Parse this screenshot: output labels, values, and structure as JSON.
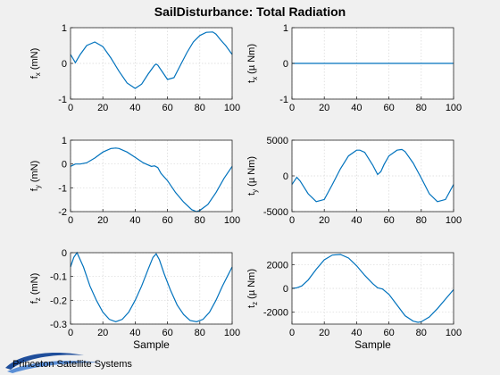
{
  "figure": {
    "title": "SailDisturbance: Total Radiation",
    "logo_text": "Princeton Satellite Systems"
  },
  "colors": {
    "line": "#0072bd",
    "background": "#f0f0f0",
    "axes": "#ffffff",
    "grid": "#d6d6d6"
  },
  "chart_data": [
    {
      "type": "line",
      "xlabel": "",
      "ylabel": "f_x (mN)",
      "xlim": [
        0,
        100
      ],
      "ylim": [
        -1,
        1
      ],
      "xticks": [
        "0",
        "20",
        "40",
        "60",
        "80",
        "100"
      ],
      "xtick_values": [
        0,
        20,
        40,
        60,
        80,
        100
      ],
      "yticks": [
        "-1",
        "0",
        "1"
      ],
      "ytick_values": [
        -1,
        0,
        1
      ],
      "grid": true,
      "series": [
        {
          "x": [
            0,
            3,
            6,
            10,
            15,
            20,
            25,
            30,
            35,
            40,
            44,
            48,
            52,
            53,
            54,
            57,
            60,
            64,
            68,
            72,
            76,
            80,
            84,
            88,
            90,
            93,
            96,
            100
          ],
          "y": [
            0.25,
            0.02,
            0.25,
            0.5,
            0.6,
            0.47,
            0.15,
            -0.22,
            -0.55,
            -0.7,
            -0.58,
            -0.3,
            -0.05,
            -0.02,
            -0.05,
            -0.25,
            -0.45,
            -0.4,
            -0.05,
            0.3,
            0.6,
            0.78,
            0.87,
            0.88,
            0.82,
            0.65,
            0.5,
            0.25
          ]
        }
      ]
    },
    {
      "type": "line",
      "xlabel": "",
      "ylabel": "t_x (µ Nm)",
      "xlim": [
        0,
        100
      ],
      "ylim": [
        -1,
        1
      ],
      "xticks": [
        "0",
        "20",
        "40",
        "60",
        "80",
        "100"
      ],
      "xtick_values": [
        0,
        20,
        40,
        60,
        80,
        100
      ],
      "yticks": [
        "-1",
        "0",
        "1"
      ],
      "ytick_values": [
        -1,
        0,
        1
      ],
      "grid": true,
      "series": [
        {
          "x": [
            0,
            100
          ],
          "y": [
            0,
            0
          ]
        }
      ]
    },
    {
      "type": "line",
      "xlabel": "",
      "ylabel": "f_y (mN)",
      "xlim": [
        0,
        100
      ],
      "ylim": [
        -2,
        1
      ],
      "xticks": [
        "0",
        "20",
        "40",
        "60",
        "80",
        "100"
      ],
      "xtick_values": [
        0,
        20,
        40,
        60,
        80,
        100
      ],
      "yticks": [
        "-2",
        "-1",
        "0",
        "1"
      ],
      "ytick_values": [
        -2,
        -1,
        0,
        1
      ],
      "grid": true,
      "series": [
        {
          "x": [
            0,
            3,
            6,
            10,
            15,
            20,
            25,
            28,
            30,
            35,
            40,
            45,
            50,
            52,
            54,
            56,
            60,
            65,
            70,
            75,
            78,
            80,
            85,
            90,
            95,
            100
          ],
          "y": [
            -0.1,
            0,
            0,
            0.05,
            0.25,
            0.5,
            0.65,
            0.67,
            0.65,
            0.5,
            0.28,
            0.05,
            -0.1,
            -0.08,
            -0.15,
            -0.4,
            -0.7,
            -1.2,
            -1.6,
            -1.92,
            -2.0,
            -1.95,
            -1.7,
            -1.2,
            -0.6,
            -0.1
          ]
        }
      ]
    },
    {
      "type": "line",
      "xlabel": "",
      "ylabel": "t_y (µ Nm)",
      "xlim": [
        0,
        100
      ],
      "ylim": [
        -5000,
        5000
      ],
      "xticks": [
        "0",
        "20",
        "40",
        "60",
        "80",
        "100"
      ],
      "xtick_values": [
        0,
        20,
        40,
        60,
        80,
        100
      ],
      "yticks": [
        "-5000",
        "0",
        "5000"
      ],
      "ytick_values": [
        -5000,
        0,
        5000
      ],
      "grid": true,
      "series": [
        {
          "x": [
            0,
            3,
            5,
            10,
            15,
            20,
            25,
            30,
            35,
            40,
            42,
            45,
            50,
            53,
            55,
            57,
            60,
            65,
            68,
            70,
            75,
            80,
            85,
            90,
            95,
            100
          ],
          "y": [
            -1200,
            -200,
            -700,
            -2500,
            -3600,
            -3300,
            -1200,
            1000,
            2800,
            3600,
            3600,
            3300,
            1500,
            200,
            600,
            1600,
            2800,
            3600,
            3700,
            3400,
            1800,
            -300,
            -2500,
            -3600,
            -3300,
            -1200
          ]
        }
      ]
    },
    {
      "type": "line",
      "xlabel": "Sample",
      "ylabel": "f_z (mN)",
      "xlim": [
        0,
        100
      ],
      "ylim": [
        -0.3,
        0
      ],
      "xticks": [
        "0",
        "20",
        "40",
        "60",
        "80",
        "100"
      ],
      "xtick_values": [
        0,
        20,
        40,
        60,
        80,
        100
      ],
      "yticks": [
        "-0.3",
        "-0.2",
        "-0.1",
        "0"
      ],
      "ytick_values": [
        -0.3,
        -0.2,
        -0.1,
        0
      ],
      "grid": true,
      "series": [
        {
          "x": [
            0,
            2,
            4,
            8,
            12,
            16,
            20,
            24,
            28,
            32,
            36,
            40,
            44,
            48,
            51,
            53,
            55,
            58,
            62,
            66,
            70,
            74,
            78,
            82,
            86,
            90,
            94,
            97,
            100
          ],
          "y": [
            -0.06,
            -0.02,
            0,
            -0.06,
            -0.14,
            -0.2,
            -0.25,
            -0.28,
            -0.29,
            -0.28,
            -0.25,
            -0.2,
            -0.14,
            -0.07,
            -0.02,
            -0.005,
            -0.03,
            -0.09,
            -0.16,
            -0.22,
            -0.26,
            -0.285,
            -0.29,
            -0.28,
            -0.25,
            -0.2,
            -0.14,
            -0.1,
            -0.06
          ]
        }
      ]
    },
    {
      "type": "line",
      "xlabel": "Sample",
      "ylabel": "t_z (µ Nm)",
      "xlim": [
        0,
        100
      ],
      "ylim": [
        -3000,
        3000
      ],
      "xticks": [
        "0",
        "20",
        "40",
        "60",
        "80",
        "100"
      ],
      "xtick_values": [
        0,
        20,
        40,
        60,
        80,
        100
      ],
      "yticks": [
        "-2000",
        "0",
        "2000"
      ],
      "ytick_values": [
        -2000,
        0,
        2000
      ],
      "grid": true,
      "series": [
        {
          "x": [
            0,
            3,
            6,
            10,
            15,
            20,
            25,
            30,
            35,
            40,
            45,
            50,
            53,
            56,
            60,
            65,
            70,
            75,
            78,
            80,
            85,
            90,
            95,
            100
          ],
          "y": [
            0,
            50,
            200,
            700,
            1600,
            2400,
            2800,
            2850,
            2550,
            1900,
            1100,
            400,
            50,
            -50,
            -500,
            -1400,
            -2300,
            -2750,
            -2850,
            -2800,
            -2400,
            -1700,
            -900,
            -100
          ]
        }
      ]
    }
  ]
}
